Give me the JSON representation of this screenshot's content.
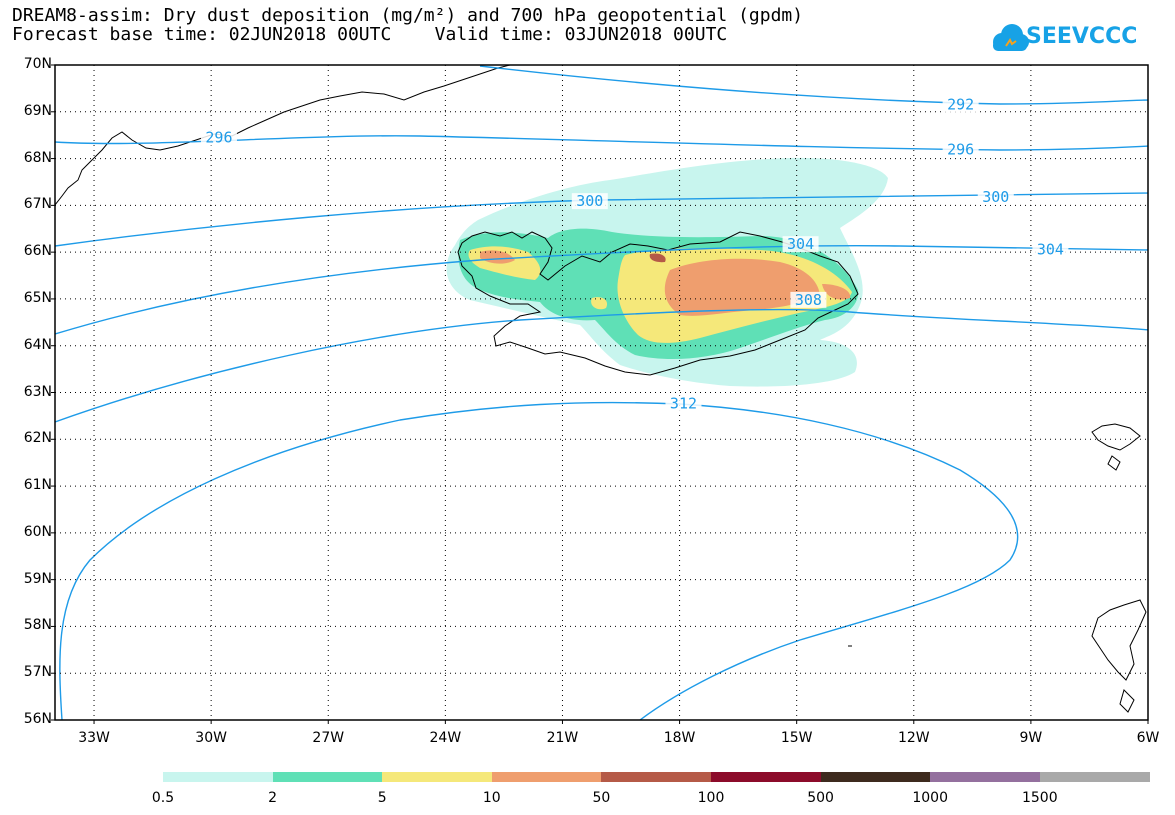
{
  "title": {
    "line1": "DREAM8-assim: Dry dust deposition (mg/m²) and 700 hPa geopotential (gpdm)",
    "line2": "Forecast base time: 02JUN2018 00UTC    Valid time: 03JUN2018 00UTC"
  },
  "logo": {
    "text": "SEEVCCC",
    "icon": "cloud-icon",
    "color": "#17a2e6"
  },
  "map_data": {
    "type": "contour-map",
    "lat_range": [
      56,
      70
    ],
    "lon_range": [
      -34,
      -6
    ],
    "lat_labels": [
      "70N",
      "69N",
      "68N",
      "67N",
      "66N",
      "65N",
      "64N",
      "63N",
      "62N",
      "61N",
      "60N",
      "59N",
      "58N",
      "57N",
      "56N"
    ],
    "lon_labels": [
      "33W",
      "30W",
      "27W",
      "24W",
      "21W",
      "18W",
      "15W",
      "12W",
      "9W",
      "6W"
    ],
    "contour_color": "#1e9be8",
    "contour_labels": [
      {
        "value": "292",
        "lon": -10.8,
        "lat": 69.16
      },
      {
        "value": "296",
        "lon": -29.8,
        "lat": 68.45
      },
      {
        "value": "296",
        "lon": -10.8,
        "lat": 68.19
      },
      {
        "value": "300",
        "lon": -20.3,
        "lat": 67.09
      },
      {
        "value": "300",
        "lon": -9.9,
        "lat": 67.18
      },
      {
        "value": "304",
        "lon": -14.9,
        "lat": 66.17
      },
      {
        "value": "304",
        "lon": -8.5,
        "lat": 66.06
      },
      {
        "value": "308",
        "lon": -14.7,
        "lat": 64.98
      },
      {
        "value": "312",
        "lon": -17.9,
        "lat": 62.76
      }
    ],
    "colorbar": {
      "labels": [
        "0.5",
        "2",
        "5",
        "10",
        "50",
        "100",
        "500",
        "1000",
        "1500"
      ],
      "colors": [
        "#c8f5ee",
        "#5fe0b6",
        "#f5e87a",
        "#ef9e6e",
        "#b55a47",
        "#8c0b2a",
        "#3e2a1e",
        "#94709e",
        "#a9a9a9"
      ]
    }
  }
}
